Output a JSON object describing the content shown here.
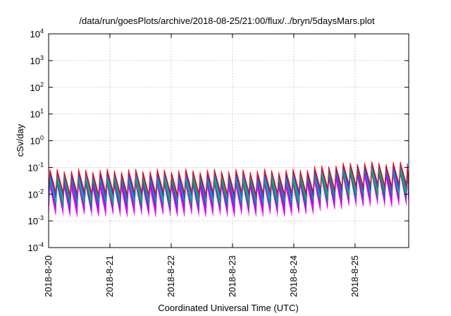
{
  "chart_data": {
    "type": "area",
    "title": "/data/run/goesPlots/archive/2018-08-25/21:00/flux/../bryn/5daysMars.plot",
    "xlabel": "Coordinated Universal Time (UTC)",
    "ylabel": "cSv/day",
    "yscale": "log",
    "ylim": [
      0.0001,
      10000
    ],
    "y_ticks": [
      {
        "base": "10",
        "exp": "-4",
        "value": 0.0001
      },
      {
        "base": "10",
        "exp": "-3",
        "value": 0.001
      },
      {
        "base": "10",
        "exp": "-2",
        "value": 0.01
      },
      {
        "base": "10",
        "exp": "-1",
        "value": 0.1
      },
      {
        "base": "10",
        "exp": "0",
        "value": 1
      },
      {
        "base": "10",
        "exp": "1",
        "value": 10
      },
      {
        "base": "10",
        "exp": "2",
        "value": 100
      },
      {
        "base": "10",
        "exp": "3",
        "value": 1000
      },
      {
        "base": "10",
        "exp": "4",
        "value": 10000
      }
    ],
    "x_ticks": [
      "2018-8-20",
      "2018-8-21",
      "2018-8-22",
      "2018-8-23",
      "2018-8-24",
      "2018-8-25"
    ],
    "xlim": [
      "2018-08-20T00:00",
      "2018-08-25T21:00"
    ],
    "grid": true,
    "oscillation_period_hours": 2.8,
    "series": [
      {
        "color": "#ff00ff",
        "peak": [
          0.035,
          0.09
        ],
        "trough": [
          0.003,
          0.007
        ]
      },
      {
        "color": "#c000ff",
        "peak": [
          0.04,
          0.1
        ],
        "trough": [
          0.0035,
          0.008
        ]
      },
      {
        "color": "#6040c0",
        "peak": [
          0.045,
          0.11
        ],
        "trough": [
          0.005,
          0.011
        ]
      },
      {
        "color": "#009090",
        "peak": [
          0.05,
          0.11
        ],
        "trough": [
          0.006,
          0.013
        ]
      },
      {
        "color": "#00c000",
        "peak": [
          0.055,
          0.12
        ],
        "trough": [
          0.007,
          0.015
        ]
      },
      {
        "color": "#00a0ff",
        "peak": [
          0.06,
          0.13
        ],
        "trough": [
          0.008,
          0.018
        ]
      },
      {
        "color": "#2040e0",
        "peak": [
          0.07,
          0.14
        ],
        "trough": [
          0.01,
          0.02
        ]
      },
      {
        "color": "#ff0000",
        "peak": [
          0.08,
          0.15
        ],
        "trough": [
          0.012,
          0.024
        ]
      }
    ]
  }
}
